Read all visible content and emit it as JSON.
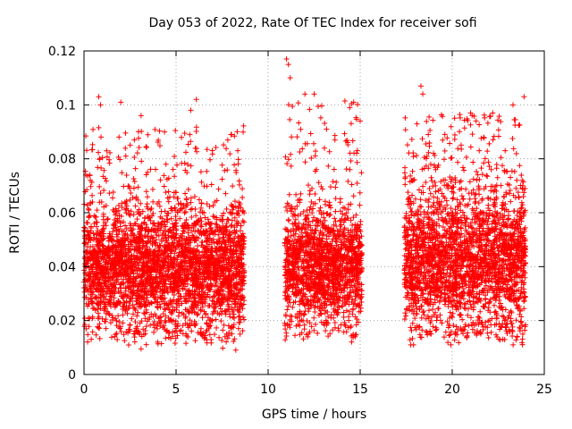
{
  "chart_data": {
    "type": "scatter",
    "title": "Day 053 of 2022, Rate Of TEC Index for receiver sofi",
    "xlabel": "GPS time / hours",
    "ylabel": "ROTI / TECUs",
    "xlim": [
      0,
      25
    ],
    "ylim": [
      0,
      0.12
    ],
    "x_ticks": [
      "0",
      "5",
      "10",
      "15",
      "20",
      "25"
    ],
    "y_ticks": [
      "0",
      "0.02",
      "0.04",
      "0.06",
      "0.08",
      "0.1",
      "0.12"
    ],
    "grid": true,
    "marker": "+",
    "color": "#ff0000",
    "series": [
      {
        "name": "ROTI",
        "segments": [
          {
            "x_start": 0.0,
            "x_end": 8.7,
            "y_min": 0.009,
            "y_max": 0.103,
            "y_typical": [
              0.02,
              0.06
            ]
          },
          {
            "x_start": 10.9,
            "x_end": 15.1,
            "y_min": 0.012,
            "y_max": 0.117,
            "y_typical": [
              0.02,
              0.06
            ]
          },
          {
            "x_start": 17.4,
            "x_end": 24.0,
            "y_min": 0.011,
            "y_max": 0.107,
            "y_typical": [
              0.02,
              0.065
            ]
          }
        ],
        "highlights": [
          {
            "x": 0.8,
            "y": 0.103
          },
          {
            "x": 0.9,
            "y": 0.1
          },
          {
            "x": 2.0,
            "y": 0.101
          },
          {
            "x": 3.1,
            "y": 0.0095
          },
          {
            "x": 3.1,
            "y": 0.096
          },
          {
            "x": 6.1,
            "y": 0.102
          },
          {
            "x": 5.8,
            "y": 0.098
          },
          {
            "x": 11.0,
            "y": 0.117
          },
          {
            "x": 11.1,
            "y": 0.115
          },
          {
            "x": 11.2,
            "y": 0.11
          },
          {
            "x": 12.0,
            "y": 0.104
          },
          {
            "x": 12.5,
            "y": 0.104
          },
          {
            "x": 15.0,
            "y": 0.094
          },
          {
            "x": 18.3,
            "y": 0.107
          },
          {
            "x": 18.4,
            "y": 0.104
          },
          {
            "x": 17.9,
            "y": 0.011
          },
          {
            "x": 21.0,
            "y": 0.097
          },
          {
            "x": 23.3,
            "y": 0.1
          },
          {
            "x": 23.9,
            "y": 0.103
          },
          {
            "x": 22.2,
            "y": 0.097
          },
          {
            "x": 0.1,
            "y": 0.074
          }
        ]
      }
    ]
  }
}
